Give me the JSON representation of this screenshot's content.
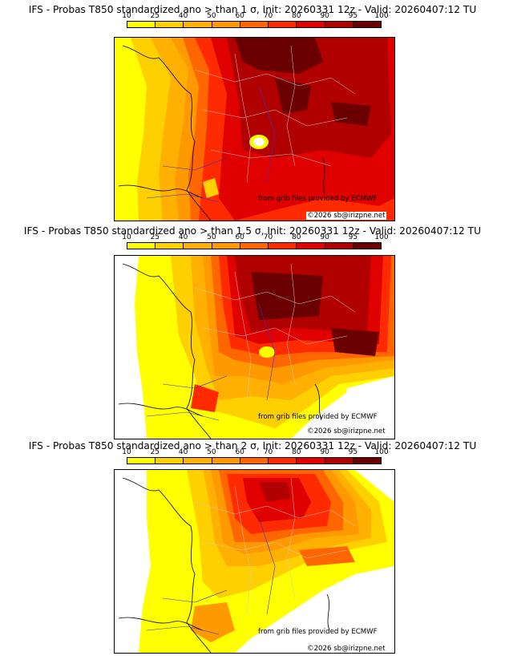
{
  "colorbar": {
    "ticks": [
      "10",
      "25",
      "40",
      "50",
      "60",
      "70",
      "80",
      "90",
      "95",
      "100"
    ],
    "colors": [
      "#ffff00",
      "#ffd000",
      "#ffb000",
      "#ff9900",
      "#ff6600",
      "#ff2a00",
      "#e00000",
      "#b00000",
      "#6a0000"
    ]
  },
  "panels": [
    {
      "title": "IFS - Probas T850  standardized ano > than 1 σ, Init: 20260331 12z - Valid: 20260407:12 TU",
      "credit": "from grib files provided by ECMWF",
      "copyright": "©2026 sb@irizpne.net"
    },
    {
      "title": "IFS - Probas T850  standardized ano > than 1.5 σ, Init: 20260331 12z - Valid: 20260407:12 TU",
      "credit": "from grib files provided by ECMWF",
      "copyright": "©2026 sb@irizpne.net"
    },
    {
      "title": "IFS - Probas T850  standardized ano > than 2 σ, Init: 20260331 12z - Valid: 20260407:12 TU",
      "credit": "from grib files provided by ECMWF",
      "copyright": "©2026 sb@irizpne.net"
    }
  ]
}
